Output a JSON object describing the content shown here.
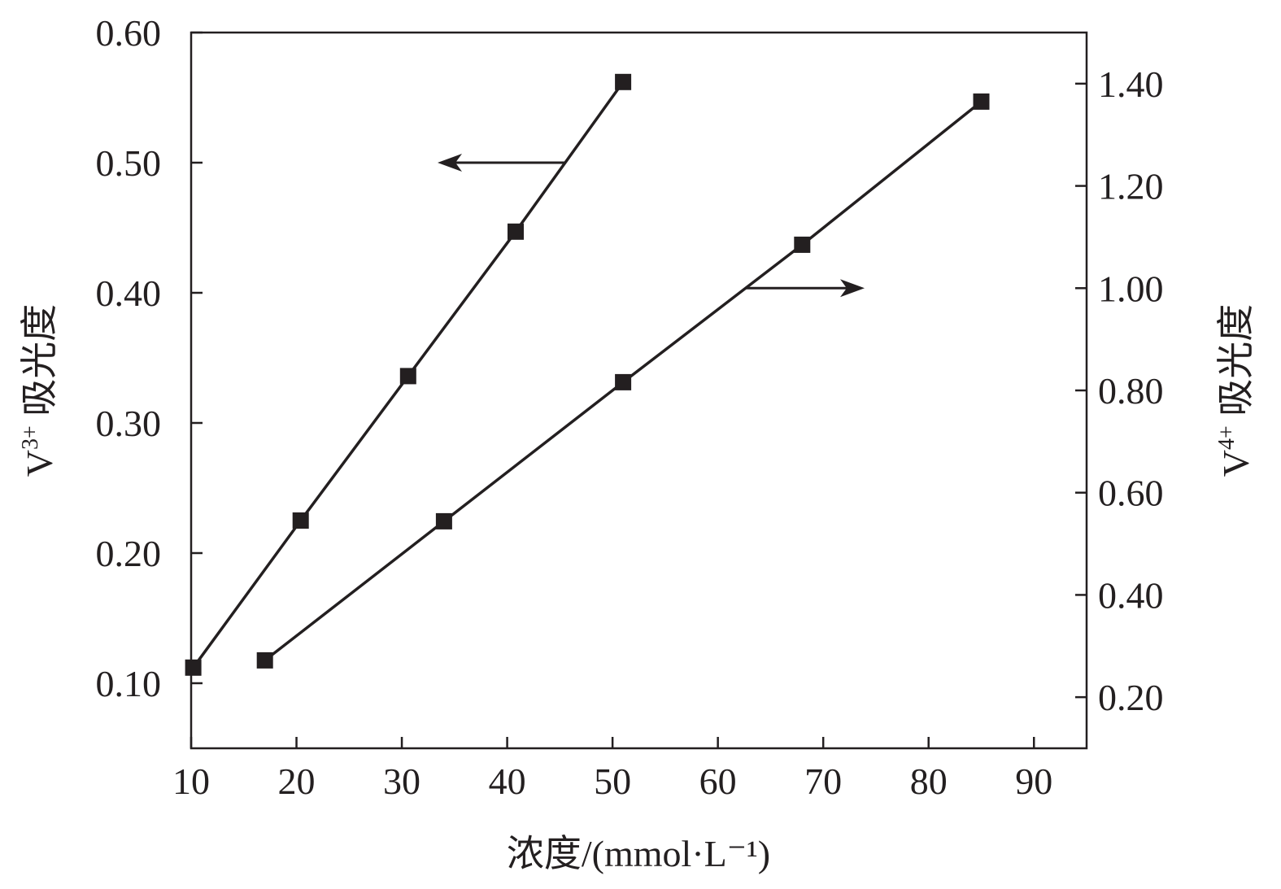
{
  "chart_data": {
    "type": "line",
    "xlabel": "浓度/(mmol·L⁻¹)",
    "xlim": [
      10,
      95
    ],
    "xticks": [
      10,
      20,
      30,
      40,
      50,
      60,
      70,
      80,
      90
    ],
    "left_axis": {
      "label_base": "V",
      "label_sup": "3+",
      "label_rest": " 吸光度",
      "ylim": [
        0.05,
        0.6
      ],
      "ticks": [
        0.1,
        0.2,
        0.3,
        0.4,
        0.5,
        0.6
      ]
    },
    "right_axis": {
      "label_base": "V",
      "label_sup": "4+",
      "label_rest": " 吸光度",
      "ylim": [
        0.1,
        1.5
      ],
      "ticks": [
        0.2,
        0.4,
        0.6,
        0.8,
        1.0,
        1.2,
        1.4
      ]
    },
    "series": [
      {
        "axis": "left",
        "marker": "square",
        "x": [
          10.2,
          20.4,
          30.6,
          40.8,
          51.0
        ],
        "y": [
          0.112,
          0.225,
          0.336,
          0.447,
          0.562
        ]
      },
      {
        "axis": "right",
        "marker": "square",
        "x": [
          17.0,
          34.0,
          51.0,
          68.0,
          85.0
        ],
        "y": [
          0.272,
          0.544,
          0.816,
          1.085,
          1.365
        ]
      }
    ],
    "annotations": [
      {
        "type": "arrow",
        "direction": "left",
        "points_to": "left-axis"
      },
      {
        "type": "arrow",
        "direction": "right",
        "points_to": "right-axis"
      }
    ]
  }
}
